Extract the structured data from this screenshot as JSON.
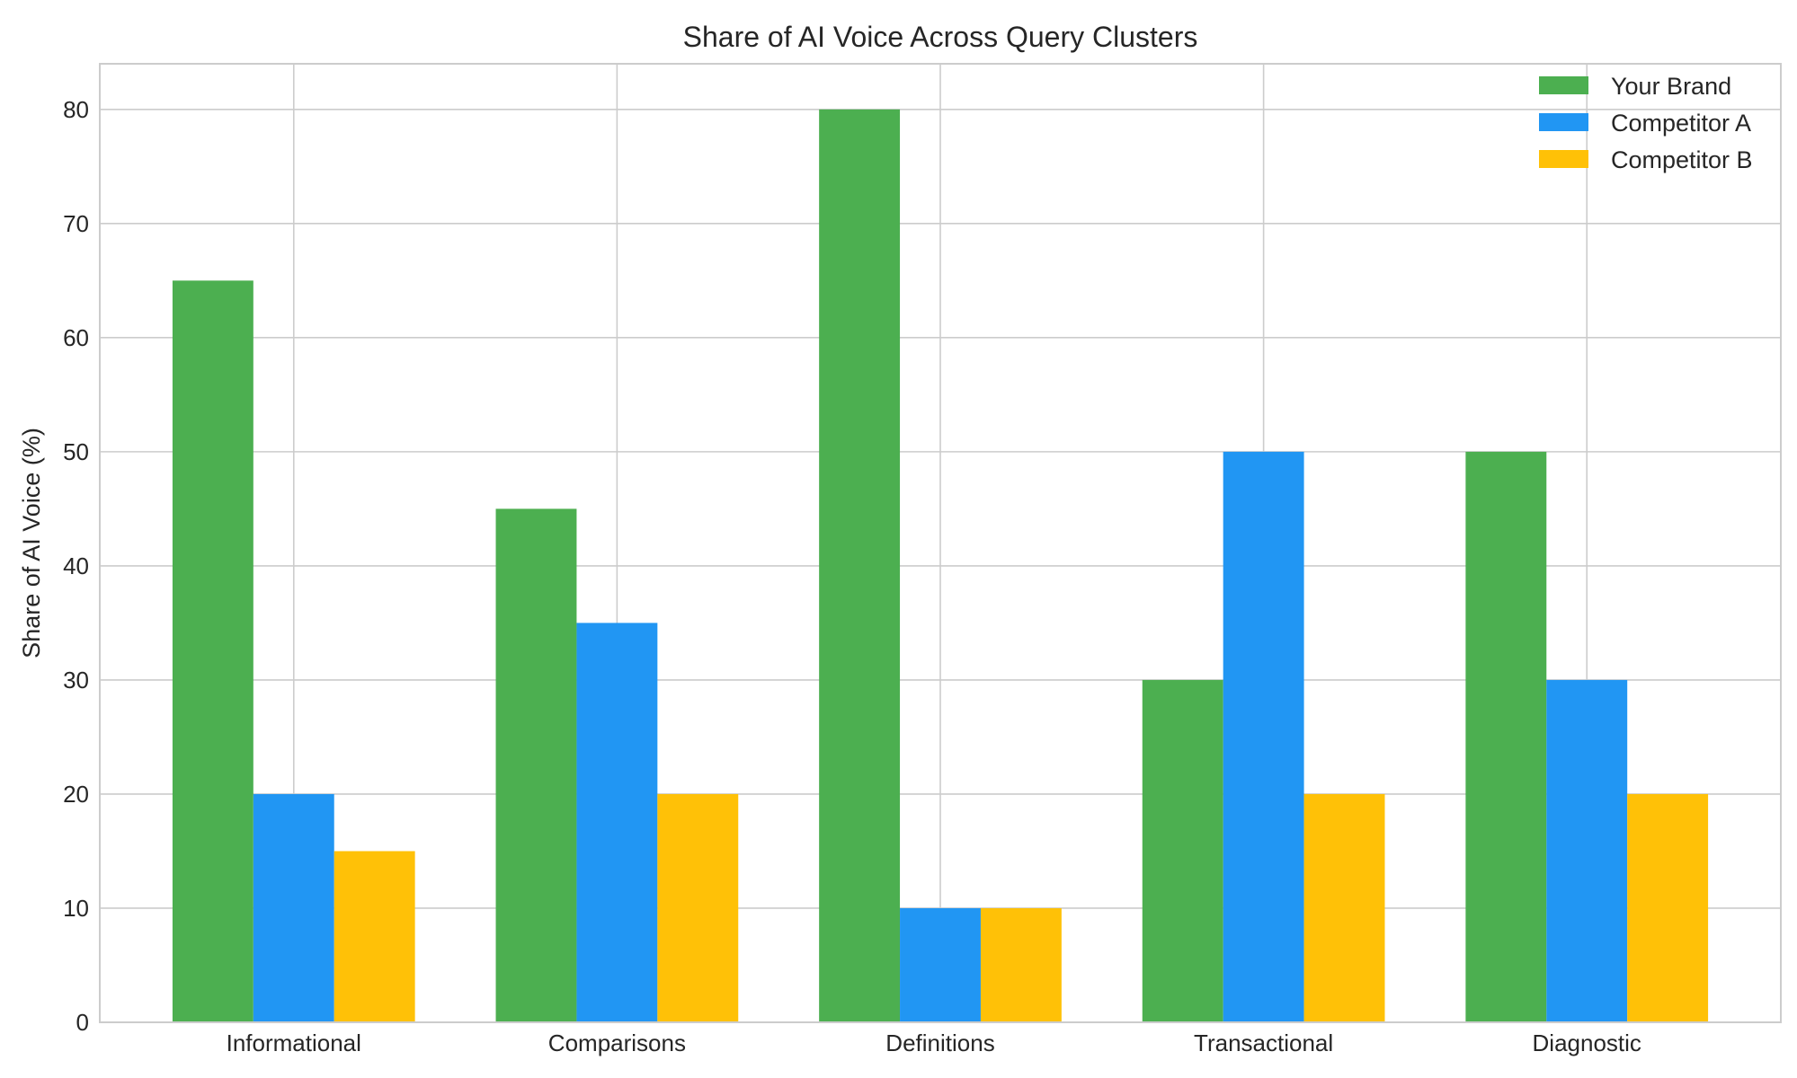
{
  "chart_data": {
    "type": "bar",
    "title": "Share of AI Voice Across Query Clusters",
    "xlabel": "",
    "ylabel": "Share of AI Voice (%)",
    "categories": [
      "Informational",
      "Comparisons",
      "Definitions",
      "Transactional",
      "Diagnostic"
    ],
    "series": [
      {
        "name": "Your Brand",
        "color": "#4caf50",
        "values": [
          65,
          45,
          80,
          30,
          50
        ]
      },
      {
        "name": "Competitor A",
        "color": "#2196f3",
        "values": [
          20,
          35,
          10,
          50,
          30
        ]
      },
      {
        "name": "Competitor B",
        "color": "#ffc107",
        "values": [
          15,
          20,
          10,
          20,
          20
        ]
      }
    ],
    "ylim": [
      0,
      84
    ],
    "yticks": [
      0,
      10,
      20,
      30,
      40,
      50,
      60,
      70,
      80
    ],
    "grid": true,
    "legend_position": "top-right"
  }
}
